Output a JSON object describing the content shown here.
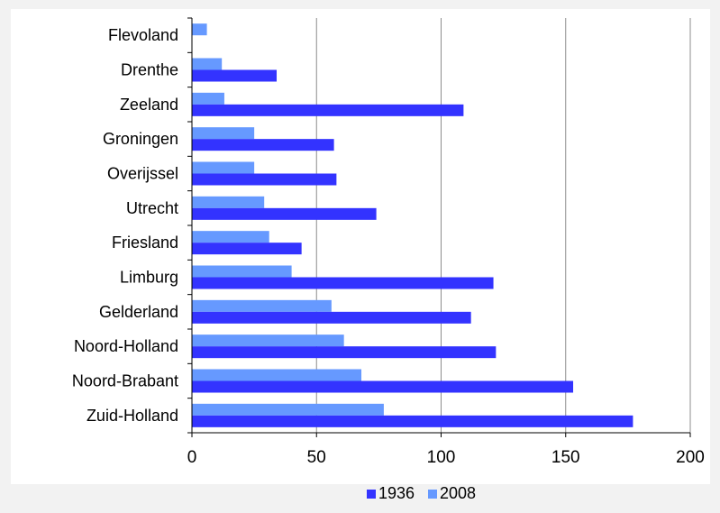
{
  "chart_data": {
    "type": "bar",
    "orientation": "horizontal",
    "title": "",
    "xlabel": "",
    "ylabel": "",
    "categories": [
      "Flevoland",
      "Drenthe",
      "Zeeland",
      "Groningen",
      "Overijssel",
      "Utrecht",
      "Friesland",
      "Limburg",
      "Gelderland",
      "Noord-Holland",
      "Noord-Brabant",
      "Zuid-Holland"
    ],
    "series": [
      {
        "name": "1936",
        "color": "#3333ff",
        "values": [
          0,
          34,
          109,
          57,
          58,
          74,
          44,
          121,
          112,
          122,
          153,
          177
        ]
      },
      {
        "name": "2008",
        "color": "#6699ff",
        "values": [
          6,
          12,
          13,
          25,
          25,
          29,
          31,
          40,
          56,
          61,
          68,
          77
        ]
      }
    ],
    "xlim": [
      0,
      200
    ],
    "xticks": [
      "0",
      "50",
      "100",
      "150",
      "200"
    ],
    "grid": true,
    "legend_position": "bottom"
  }
}
